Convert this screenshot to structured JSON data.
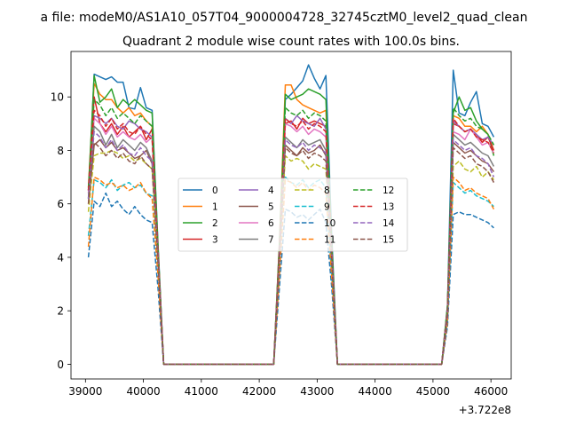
{
  "figure": {
    "suptitle": "a file: modeM0/AS1A10_057T04_9000004728_32745cztM0_level2_quad_clean",
    "offset_text": "+3.722e8"
  },
  "chart_data": {
    "type": "line",
    "title": "Quadrant 2 module wise count rates with 100.0s bins.",
    "xlabel": "",
    "ylabel": "",
    "xlim": [
      38750,
      46350
    ],
    "ylim": [
      -0.55,
      11.7
    ],
    "x_ticks": [
      39000,
      40000,
      41000,
      42000,
      43000,
      44000,
      45000,
      46000
    ],
    "x_tick_labels": [
      "39000",
      "40000",
      "41000",
      "42000",
      "43000",
      "44000",
      "45000",
      "46000"
    ],
    "y_ticks": [
      0,
      2,
      4,
      6,
      8,
      10
    ],
    "y_tick_labels": [
      "0",
      "2",
      "4",
      "6",
      "8",
      "10"
    ],
    "grid": false,
    "legend_placement": "center",
    "legend_columns": 4,
    "x": [
      39050,
      39150,
      39250,
      39350,
      39450,
      39550,
      39650,
      39750,
      39850,
      39950,
      40050,
      40150,
      40250,
      40350,
      40450,
      40550,
      40650,
      40750,
      40850,
      40950,
      41050,
      41150,
      41250,
      41350,
      41450,
      41550,
      41650,
      41750,
      41850,
      41950,
      42050,
      42150,
      42250,
      42350,
      42450,
      42550,
      42650,
      42750,
      42850,
      42950,
      43050,
      43150,
      43250,
      43350,
      43450,
      43550,
      43650,
      43750,
      43850,
      43950,
      44050,
      44150,
      44250,
      44350,
      44450,
      44550,
      44650,
      44750,
      44850,
      44950,
      45050,
      45150,
      45250,
      45350,
      45450,
      45550,
      45650,
      45750,
      45850,
      45950,
      46050
    ],
    "series": [
      {
        "name": "0",
        "color": "#1f77b4",
        "dash": "solid",
        "values": [
          6.2,
          10.85,
          10.75,
          10.65,
          10.75,
          10.55,
          10.55,
          9.6,
          9.55,
          10.35,
          9.6,
          9.5,
          4.6,
          0,
          0,
          0,
          0,
          0,
          0,
          0,
          0,
          0,
          0,
          0,
          0,
          0,
          0,
          0,
          0,
          0,
          0,
          0,
          0,
          4.6,
          9.9,
          10.1,
          10.35,
          10.6,
          11.2,
          10.7,
          10.3,
          10.8,
          4.9,
          0,
          0,
          0,
          0,
          0,
          0,
          0,
          0,
          0,
          0,
          0,
          0,
          0,
          0,
          0,
          0,
          0,
          0,
          0,
          2.2,
          11.0,
          9.4,
          9.3,
          9.8,
          10.2,
          9.0,
          8.9,
          8.5
        ]
      },
      {
        "name": "1",
        "color": "#ff7f0e",
        "dash": "solid",
        "values": [
          6.6,
          10.5,
          10.1,
          9.9,
          9.9,
          9.6,
          9.4,
          9.6,
          9.3,
          9.4,
          9.1,
          8.9,
          4.4,
          0,
          0,
          0,
          0,
          0,
          0,
          0,
          0,
          0,
          0,
          0,
          0,
          0,
          0,
          0,
          0,
          0,
          0,
          0,
          0,
          4.6,
          10.45,
          10.45,
          9.9,
          9.7,
          9.6,
          9.5,
          9.4,
          9.5,
          4.5,
          0,
          0,
          0,
          0,
          0,
          0,
          0,
          0,
          0,
          0,
          0,
          0,
          0,
          0,
          0,
          0,
          0,
          0,
          0,
          2.1,
          9.3,
          9.2,
          8.9,
          8.9,
          8.7,
          8.9,
          8.6,
          8.0
        ]
      },
      {
        "name": "2",
        "color": "#2ca02c",
        "dash": "solid",
        "values": [
          6.5,
          10.8,
          9.8,
          10.0,
          10.3,
          9.6,
          9.9,
          9.7,
          9.9,
          9.7,
          9.5,
          9.4,
          4.5,
          0,
          0,
          0,
          0,
          0,
          0,
          0,
          0,
          0,
          0,
          0,
          0,
          0,
          0,
          0,
          0,
          0,
          0,
          0,
          0,
          4.5,
          10.1,
          9.9,
          10.0,
          10.1,
          10.3,
          10.2,
          10.1,
          9.9,
          4.6,
          0,
          0,
          0,
          0,
          0,
          0,
          0,
          0,
          0,
          0,
          0,
          0,
          0,
          0,
          0,
          0,
          0,
          0,
          0,
          2.2,
          9.4,
          10.0,
          9.5,
          9.6,
          9.1,
          8.8,
          8.6,
          7.8
        ]
      },
      {
        "name": "3",
        "color": "#d62728",
        "dash": "solid",
        "values": [
          6.5,
          10.0,
          9.0,
          8.7,
          9.0,
          8.6,
          8.9,
          8.5,
          8.7,
          8.9,
          8.4,
          8.8,
          4.3,
          0,
          0,
          0,
          0,
          0,
          0,
          0,
          0,
          0,
          0,
          0,
          0,
          0,
          0,
          0,
          0,
          0,
          0,
          0,
          0,
          4.3,
          9.0,
          9.1,
          8.8,
          9.2,
          9.0,
          9.1,
          9.0,
          8.9,
          4.3,
          0,
          0,
          0,
          0,
          0,
          0,
          0,
          0,
          0,
          0,
          0,
          0,
          0,
          0,
          0,
          0,
          0,
          0,
          0,
          2.1,
          9.0,
          8.9,
          8.7,
          8.8,
          8.6,
          8.3,
          8.5,
          8.0
        ]
      },
      {
        "name": "4",
        "color": "#9467bd",
        "dash": "solid",
        "values": [
          6.4,
          9.3,
          9.2,
          9.0,
          9.2,
          8.9,
          8.8,
          9.1,
          9.0,
          8.8,
          8.7,
          8.5,
          4.2,
          0,
          0,
          0,
          0,
          0,
          0,
          0,
          0,
          0,
          0,
          0,
          0,
          0,
          0,
          0,
          0,
          0,
          0,
          0,
          0,
          4.2,
          9.2,
          9.0,
          9.3,
          9.1,
          9.0,
          8.9,
          9.2,
          8.8,
          4.2,
          0,
          0,
          0,
          0,
          0,
          0,
          0,
          0,
          0,
          0,
          0,
          0,
          0,
          0,
          0,
          0,
          0,
          0,
          0,
          2.0,
          9.1,
          8.9,
          8.7,
          8.8,
          8.6,
          8.4,
          8.5,
          8.2
        ]
      },
      {
        "name": "5",
        "color": "#8c564b",
        "dash": "solid",
        "values": [
          6.0,
          8.2,
          8.4,
          8.1,
          8.3,
          8.0,
          8.1,
          7.9,
          7.7,
          7.8,
          8.0,
          7.5,
          4.0,
          0,
          0,
          0,
          0,
          0,
          0,
          0,
          0,
          0,
          0,
          0,
          0,
          0,
          0,
          0,
          0,
          0,
          0,
          0,
          0,
          4.0,
          8.2,
          8.0,
          7.8,
          8.1,
          7.9,
          8.0,
          8.2,
          7.8,
          4.0,
          0,
          0,
          0,
          0,
          0,
          0,
          0,
          0,
          0,
          0,
          0,
          0,
          0,
          0,
          0,
          0,
          0,
          0,
          0,
          1.9,
          8.3,
          8.1,
          7.9,
          8.0,
          7.8,
          7.6,
          7.5,
          7.2
        ]
      },
      {
        "name": "6",
        "color": "#e377c2",
        "dash": "solid",
        "values": [
          6.4,
          9.2,
          9.0,
          8.6,
          8.9,
          8.5,
          8.7,
          8.5,
          8.4,
          8.6,
          8.3,
          8.5,
          4.2,
          0,
          0,
          0,
          0,
          0,
          0,
          0,
          0,
          0,
          0,
          0,
          0,
          0,
          0,
          0,
          0,
          0,
          0,
          0,
          0,
          4.2,
          9.0,
          8.9,
          8.7,
          8.9,
          8.6,
          8.8,
          8.7,
          8.5,
          4.2,
          0,
          0,
          0,
          0,
          0,
          0,
          0,
          0,
          0,
          0,
          0,
          0,
          0,
          0,
          0,
          0,
          0,
          0,
          0,
          2.0,
          8.7,
          8.6,
          8.4,
          8.8,
          8.5,
          8.2,
          8.3,
          7.9
        ]
      },
      {
        "name": "7",
        "color": "#7f7f7f",
        "dash": "solid",
        "values": [
          6.2,
          8.9,
          8.7,
          8.2,
          8.6,
          8.1,
          8.4,
          8.2,
          8.0,
          8.3,
          8.1,
          7.6,
          4.1,
          0,
          0,
          0,
          0,
          0,
          0,
          0,
          0,
          0,
          0,
          0,
          0,
          0,
          0,
          0,
          0,
          0,
          0,
          0,
          0,
          4.1,
          8.5,
          8.3,
          8.1,
          8.4,
          8.2,
          8.3,
          8.4,
          8.0,
          4.1,
          0,
          0,
          0,
          0,
          0,
          0,
          0,
          0,
          0,
          0,
          0,
          0,
          0,
          0,
          0,
          0,
          0,
          0,
          0,
          1.9,
          8.6,
          8.4,
          8.2,
          8.3,
          8.1,
          7.9,
          7.8,
          7.4
        ]
      },
      {
        "name": "8",
        "color": "#bcbd22",
        "dash": "dashed",
        "values": [
          5.7,
          7.8,
          7.9,
          7.9,
          8.0,
          7.9,
          7.7,
          7.8,
          7.6,
          7.7,
          7.5,
          7.3,
          3.9,
          0,
          0,
          0,
          0,
          0,
          0,
          0,
          0,
          0,
          0,
          0,
          0,
          0,
          0,
          0,
          0,
          0,
          0,
          0,
          0,
          3.9,
          7.8,
          7.6,
          7.7,
          7.6,
          7.3,
          7.5,
          7.4,
          7.3,
          3.8,
          0,
          0,
          0,
          0,
          0,
          0,
          0,
          0,
          0,
          0,
          0,
          0,
          0,
          0,
          0,
          0,
          0,
          0,
          0,
          1.8,
          7.4,
          7.6,
          7.3,
          7.2,
          7.4,
          7.0,
          7.2,
          6.9
        ]
      },
      {
        "name": "9",
        "color": "#17becf",
        "dash": "dashed",
        "values": [
          4.8,
          6.9,
          6.8,
          6.6,
          6.9,
          6.5,
          6.7,
          6.8,
          6.6,
          6.7,
          6.4,
          6.3,
          3.4,
          0,
          0,
          0,
          0,
          0,
          0,
          0,
          0,
          0,
          0,
          0,
          0,
          0,
          0,
          0,
          0,
          0,
          0,
          0,
          0,
          3.4,
          7.0,
          6.8,
          6.7,
          6.9,
          6.6,
          6.8,
          6.9,
          6.6,
          3.4,
          0,
          0,
          0,
          0,
          0,
          0,
          0,
          0,
          0,
          0,
          0,
          0,
          0,
          0,
          0,
          0,
          0,
          0,
          0,
          1.6,
          6.8,
          6.6,
          6.4,
          6.5,
          6.3,
          6.2,
          6.1,
          5.9
        ]
      },
      {
        "name": "10",
        "color": "#1f77b4",
        "dash": "dashed",
        "values": [
          4.0,
          6.1,
          5.9,
          6.4,
          5.9,
          6.1,
          5.8,
          5.6,
          5.9,
          5.6,
          5.4,
          5.3,
          2.9,
          0,
          0,
          0,
          0,
          0,
          0,
          0,
          0,
          0,
          0,
          0,
          0,
          0,
          0,
          0,
          0,
          0,
          0,
          0,
          0,
          2.9,
          5.8,
          5.7,
          5.5,
          5.6,
          5.4,
          5.6,
          5.8,
          5.3,
          2.9,
          0,
          0,
          0,
          0,
          0,
          0,
          0,
          0,
          0,
          0,
          0,
          0,
          0,
          0,
          0,
          0,
          0,
          0,
          0,
          1.4,
          5.6,
          5.7,
          5.6,
          5.6,
          5.5,
          5.4,
          5.3,
          5.1
        ]
      },
      {
        "name": "11",
        "color": "#ff7f0e",
        "dash": "dashed",
        "values": [
          4.4,
          7.0,
          6.9,
          6.7,
          6.8,
          6.6,
          6.7,
          6.5,
          6.6,
          6.8,
          6.4,
          6.2,
          3.4,
          0,
          0,
          0,
          0,
          0,
          0,
          0,
          0,
          0,
          0,
          0,
          0,
          0,
          0,
          0,
          0,
          0,
          0,
          0,
          0,
          3.4,
          6.9,
          6.8,
          6.6,
          6.8,
          6.5,
          6.7,
          6.6,
          6.4,
          3.3,
          0,
          0,
          0,
          0,
          0,
          0,
          0,
          0,
          0,
          0,
          0,
          0,
          0,
          0,
          0,
          0,
          0,
          0,
          0,
          1.6,
          7.0,
          6.8,
          6.5,
          6.6,
          6.4,
          6.3,
          6.2,
          5.8
        ]
      },
      {
        "name": "12",
        "color": "#2ca02c",
        "dash": "dashed",
        "values": [
          6.6,
          9.9,
          9.7,
          9.3,
          9.6,
          9.2,
          9.4,
          9.2,
          9.0,
          9.3,
          9.1,
          8.9,
          4.4,
          0,
          0,
          0,
          0,
          0,
          0,
          0,
          0,
          0,
          0,
          0,
          0,
          0,
          0,
          0,
          0,
          0,
          0,
          0,
          0,
          4.4,
          9.6,
          9.4,
          9.3,
          9.5,
          9.2,
          9.4,
          9.3,
          9.1,
          4.4,
          0,
          0,
          0,
          0,
          0,
          0,
          0,
          0,
          0,
          0,
          0,
          0,
          0,
          0,
          0,
          0,
          0,
          0,
          0,
          2.1,
          9.6,
          9.3,
          9.1,
          9.2,
          8.9,
          8.8,
          8.6,
          8.2
        ]
      },
      {
        "name": "13",
        "color": "#d62728",
        "dash": "dashed",
        "values": [
          6.5,
          9.5,
          9.3,
          8.9,
          9.2,
          8.8,
          9.0,
          8.7,
          8.6,
          8.9,
          8.6,
          8.4,
          4.3,
          0,
          0,
          0,
          0,
          0,
          0,
          0,
          0,
          0,
          0,
          0,
          0,
          0,
          0,
          0,
          0,
          0,
          0,
          0,
          0,
          4.3,
          9.2,
          9.0,
          8.9,
          9.1,
          8.8,
          9.0,
          8.9,
          8.7,
          4.3,
          0,
          0,
          0,
          0,
          0,
          0,
          0,
          0,
          0,
          0,
          0,
          0,
          0,
          0,
          0,
          0,
          0,
          0,
          0,
          2.0,
          9.2,
          8.9,
          8.7,
          8.8,
          8.5,
          8.4,
          8.3,
          7.9
        ]
      },
      {
        "name": "14",
        "color": "#9467bd",
        "dash": "dashed",
        "values": [
          6.2,
          8.7,
          8.5,
          8.1,
          8.4,
          8.0,
          8.2,
          7.9,
          7.8,
          8.1,
          7.8,
          7.6,
          4.1,
          0,
          0,
          0,
          0,
          0,
          0,
          0,
          0,
          0,
          0,
          0,
          0,
          0,
          0,
          0,
          0,
          0,
          0,
          0,
          0,
          4.1,
          8.4,
          8.2,
          8.1,
          8.3,
          8.0,
          8.2,
          8.1,
          7.9,
          4.1,
          0,
          0,
          0,
          0,
          0,
          0,
          0,
          0,
          0,
          0,
          0,
          0,
          0,
          0,
          0,
          0,
          0,
          0,
          0,
          1.9,
          8.4,
          8.2,
          8.0,
          8.1,
          7.8,
          7.7,
          7.5,
          7.0
        ]
      },
      {
        "name": "15",
        "color": "#8c564b",
        "dash": "dashed",
        "values": [
          6.0,
          8.3,
          8.1,
          7.8,
          8.0,
          7.7,
          7.9,
          7.6,
          7.5,
          7.8,
          7.5,
          7.3,
          3.9,
          0,
          0,
          0,
          0,
          0,
          0,
          0,
          0,
          0,
          0,
          0,
          0,
          0,
          0,
          0,
          0,
          0,
          0,
          0,
          0,
          3.9,
          8.1,
          7.9,
          7.8,
          8.0,
          7.7,
          7.9,
          7.8,
          7.6,
          3.9,
          0,
          0,
          0,
          0,
          0,
          0,
          0,
          0,
          0,
          0,
          0,
          0,
          0,
          0,
          0,
          0,
          0,
          0,
          0,
          1.8,
          8.1,
          7.9,
          7.7,
          7.8,
          7.5,
          7.4,
          7.2,
          6.8
        ]
      }
    ]
  }
}
